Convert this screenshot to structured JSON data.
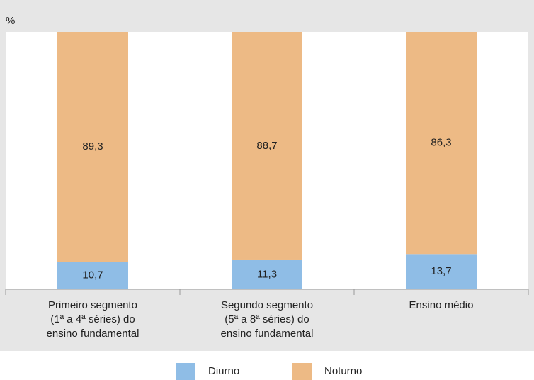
{
  "chart_data": {
    "type": "stacked_bar",
    "y_unit_label": "%",
    "categories": [
      "Primeiro segmento\n(1ª a 4ª séries) do\nensino fundamental",
      "Segundo segmento\n(5ª a 8ª séries) do\nensino fundamental",
      "Ensino médio"
    ],
    "series": [
      {
        "name": "Diurno",
        "color": "#8fbde6",
        "values": [
          10.7,
          11.3,
          13.7
        ],
        "value_labels": [
          "10,7",
          "11,3",
          "13,7"
        ]
      },
      {
        "name": "Noturno",
        "color": "#edba85",
        "values": [
          89.3,
          88.7,
          86.3
        ],
        "value_labels": [
          "89,3",
          "88,7",
          "86,3"
        ]
      }
    ],
    "ylim": [
      0,
      100
    ]
  }
}
